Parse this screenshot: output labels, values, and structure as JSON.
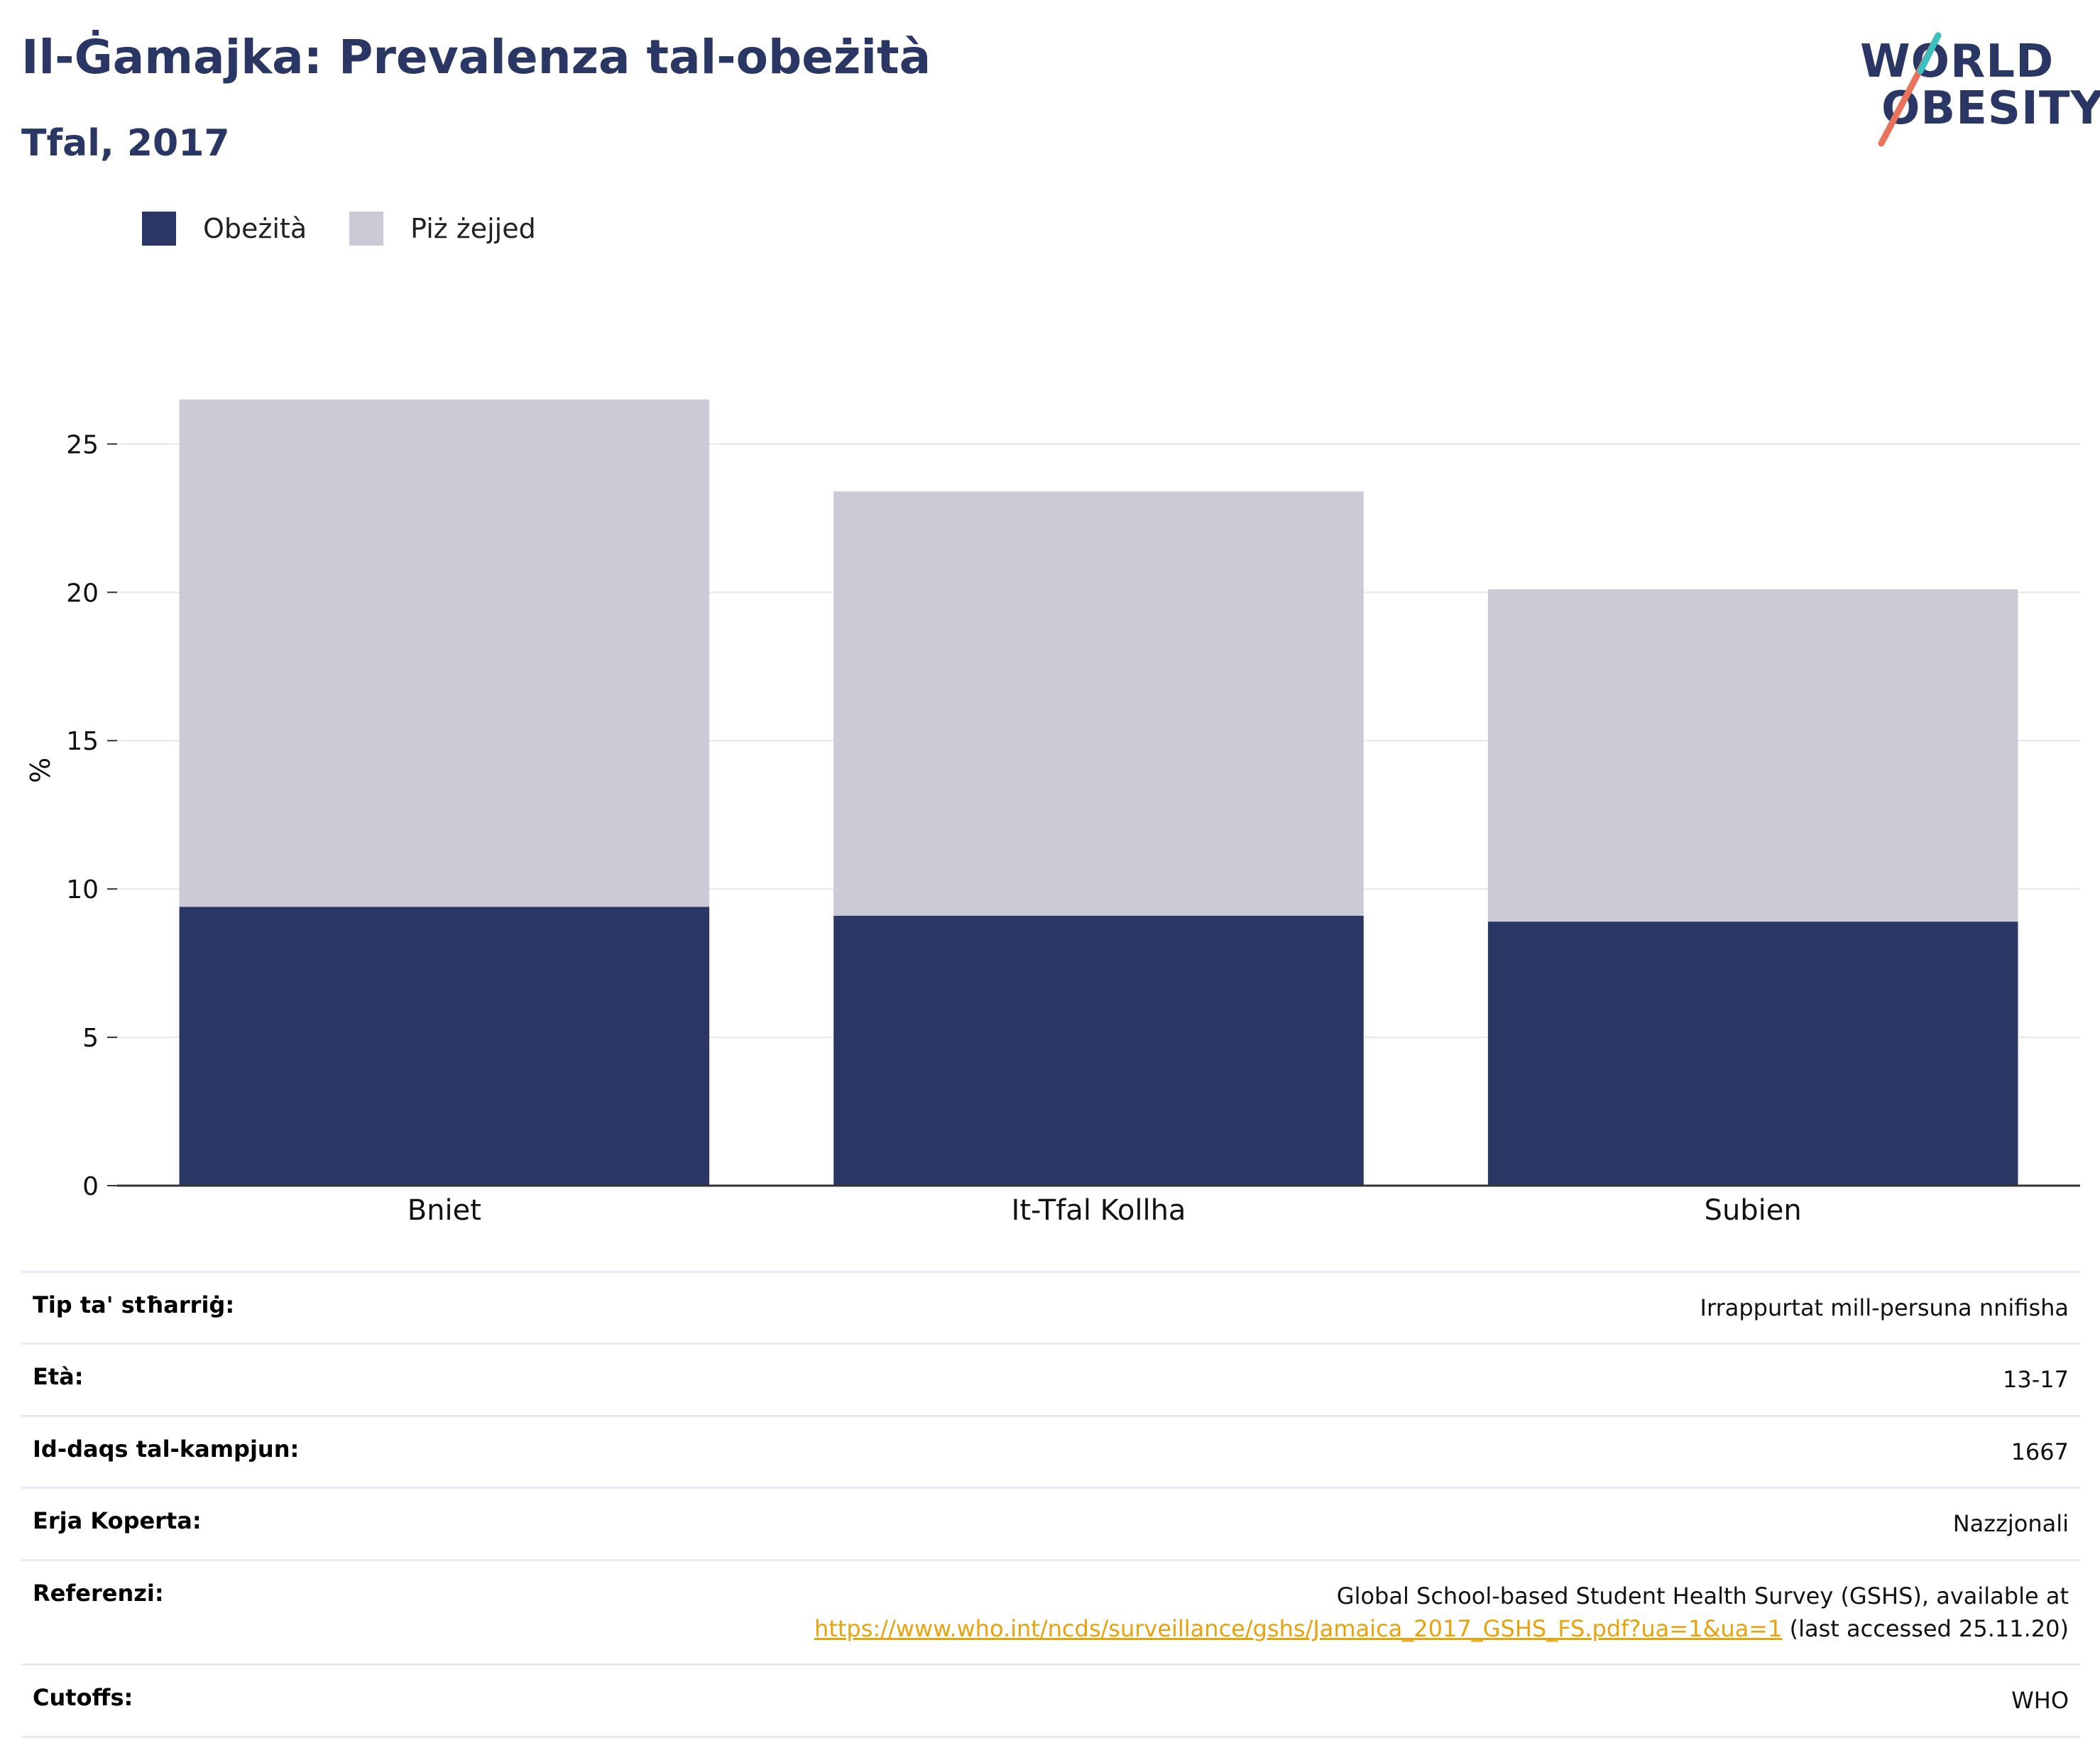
{
  "title": "Il-Ġamajka: Prevalenza tal-obeżità",
  "subtitle": "Tfal, 2017",
  "logo": {
    "line1": "WORLD",
    "line2": "OBESITY"
  },
  "colors": {
    "obesity": "#2a3663",
    "overweight": "#cacbd7",
    "title": "#2a3663",
    "link": "#e8a20c"
  },
  "chart_data": {
    "type": "bar",
    "stacked": true,
    "categories": [
      "Bniet",
      "It-Tfal Kollha",
      "Subien"
    ],
    "series": [
      {
        "name": "Obeżità",
        "values": [
          9.4,
          9.1,
          8.9
        ]
      },
      {
        "name": "Piż żejjed",
        "values": [
          17.1,
          14.3,
          11.2
        ]
      }
    ],
    "ylabel": "%",
    "xlabel": "",
    "ylim": [
      0,
      28
    ],
    "yticks": [
      0,
      5,
      10,
      15,
      20,
      25
    ],
    "grid": true,
    "legend": "top-left"
  },
  "info": [
    {
      "label": "Tip ta' stħarriġ:",
      "value": "Irrappurtat mill-persuna nnifisha"
    },
    {
      "label": "Età:",
      "value": "13-17"
    },
    {
      "label": "Id-daqs tal-kampjun:",
      "value": "1667"
    },
    {
      "label": "Erja Koperta:",
      "value": "Nazzjonali"
    },
    {
      "label": "Referenzi:",
      "value_pre": "Global School-based Student Health Survey (GSHS), available at",
      "link": "https://www.who.int/ncds/surveillance/gshs/Jamaica_2017_GSHS_FS.pdf?ua=1&ua=1",
      "value_post": " (last accessed 25.11.20)"
    },
    {
      "label": "Cutoffs:",
      "value": "WHO"
    }
  ]
}
